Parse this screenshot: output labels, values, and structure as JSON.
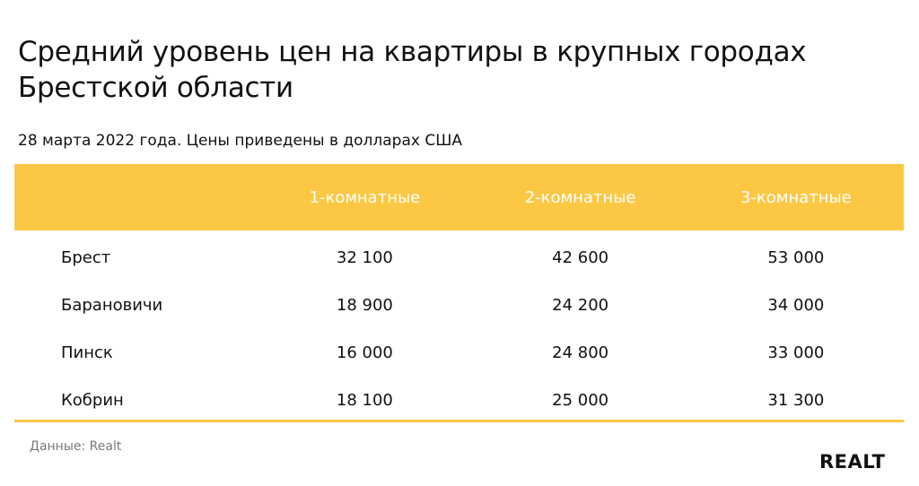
{
  "title": "Средний уровень цен на квартиры в крупных городах Брестской области",
  "subtitle": "28 марта 2022 года. Цены приведены в долларах США",
  "colors": {
    "header_bg": "#fcc844",
    "header_text": "#ffffff"
  },
  "chart_data": {
    "type": "table",
    "title": "Средний уровень цен на квартиры в крупных городах Брестской области",
    "subtitle": "28 марта 2022 года. Цены приведены в долларах США",
    "columns": [
      "",
      "1-комнатные",
      "2-комнатные",
      "3-комнатные"
    ],
    "rows": [
      {
        "city": "Брест",
        "r1": "32 100",
        "r2": "42 600",
        "r3": "53 000"
      },
      {
        "city": "Барановичи",
        "r1": "18 900",
        "r2": "24 200",
        "r3": "34 000"
      },
      {
        "city": "Пинск",
        "r1": "16 000",
        "r2": "24 800",
        "r3": "33 000"
      },
      {
        "city": "Кобрин",
        "r1": "18 100",
        "r2": "25 000",
        "r3": "31 300"
      }
    ]
  },
  "source": "Данные: Realt",
  "logo_text": "REALT"
}
